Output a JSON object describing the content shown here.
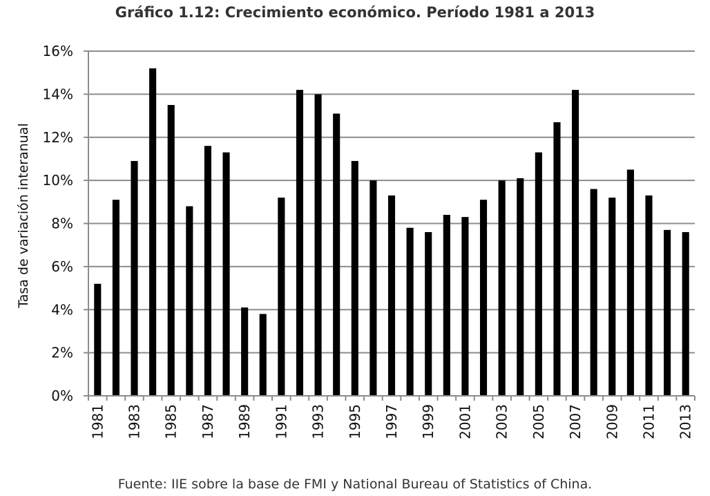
{
  "chart_data": {
    "type": "bar",
    "title": "Gráfico 1.12: Crecimiento económico. Período 1981 a 2013",
    "xlabel": "",
    "ylabel": "Tasa de variación interanual",
    "source": "Fuente: IIE sobre la base de FMI y National Bureau of Statistics of China.",
    "categories": [
      "1981",
      "1982",
      "1983",
      "1984",
      "1985",
      "1986",
      "1987",
      "1988",
      "1989",
      "1990",
      "1991",
      "1992",
      "1993",
      "1994",
      "1995",
      "1996",
      "1997",
      "1998",
      "1999",
      "2000",
      "2001",
      "2002",
      "2003",
      "2004",
      "2005",
      "2006",
      "2007",
      "2008",
      "2009",
      "2010",
      "2011",
      "2012",
      "2013"
    ],
    "x_tick_labels": [
      "1981",
      "1983",
      "1985",
      "1987",
      "1989",
      "1991",
      "1993",
      "1995",
      "1997",
      "1999",
      "2001",
      "2003",
      "2005",
      "2007",
      "2009",
      "2011",
      "2013"
    ],
    "values": [
      5.2,
      9.1,
      10.9,
      15.2,
      13.5,
      8.8,
      11.6,
      11.3,
      4.1,
      3.8,
      9.2,
      14.2,
      14.0,
      13.1,
      10.9,
      10.0,
      9.3,
      7.8,
      7.6,
      8.4,
      8.3,
      9.1,
      10.0,
      10.1,
      11.3,
      12.7,
      14.2,
      9.6,
      9.2,
      10.5,
      9.3,
      7.7,
      7.6
    ],
    "ylim": [
      0,
      16
    ],
    "y_ticks": [
      0,
      2,
      4,
      6,
      8,
      10,
      12,
      14,
      16
    ],
    "y_tick_format": "%",
    "grid": true,
    "bar_color": "#000000",
    "grid_color": "#8c8c8c"
  }
}
